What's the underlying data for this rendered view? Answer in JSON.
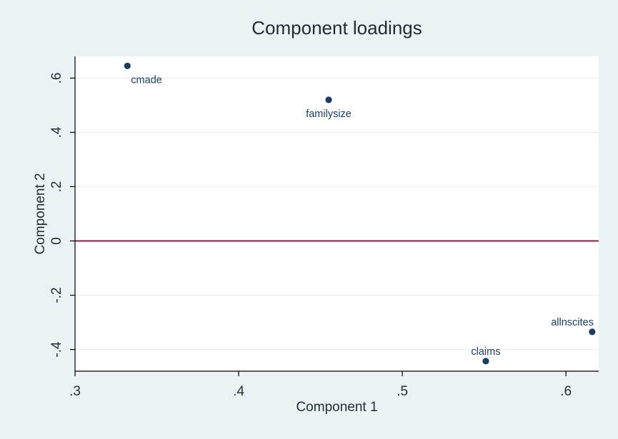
{
  "chart_data": {
    "type": "scatter",
    "title": "Component loadings",
    "xlabel": "Component 1",
    "ylabel": "Component 2",
    "xlim": [
      0.3,
      0.62
    ],
    "ylim": [
      -0.48,
      0.68
    ],
    "xticks": [
      {
        "value": 0.3,
        "label": ".3"
      },
      {
        "value": 0.4,
        "label": ".4"
      },
      {
        "value": 0.5,
        "label": ".5"
      },
      {
        "value": 0.6,
        "label": ".6"
      }
    ],
    "yticks": [
      {
        "value": -0.4,
        "label": "-.4"
      },
      {
        "value": -0.2,
        "label": "-.2"
      },
      {
        "value": 0.0,
        "label": "0"
      },
      {
        "value": 0.2,
        "label": ".2"
      },
      {
        "value": 0.4,
        "label": ".4"
      },
      {
        "value": 0.6,
        "label": ".6"
      }
    ],
    "grid": true,
    "reference_line_y": 0,
    "points": [
      {
        "label": "cmade",
        "x": 0.332,
        "y": 0.645,
        "label_position": "below-right"
      },
      {
        "label": "familysize",
        "x": 0.455,
        "y": 0.52,
        "label_position": "below"
      },
      {
        "label": "claims",
        "x": 0.551,
        "y": -0.443,
        "label_position": "above"
      },
      {
        "label": "allnscites",
        "x": 0.616,
        "y": -0.335,
        "label_position": "above-left"
      }
    ],
    "colors": {
      "background": "#eaf2f3",
      "plot_area": "#ffffff",
      "grid": "#e9eeee",
      "point": "#1a3c64",
      "point_label": "#1a3c64",
      "reference_line": "#8f1f3f",
      "text": "#1f2d33"
    }
  }
}
